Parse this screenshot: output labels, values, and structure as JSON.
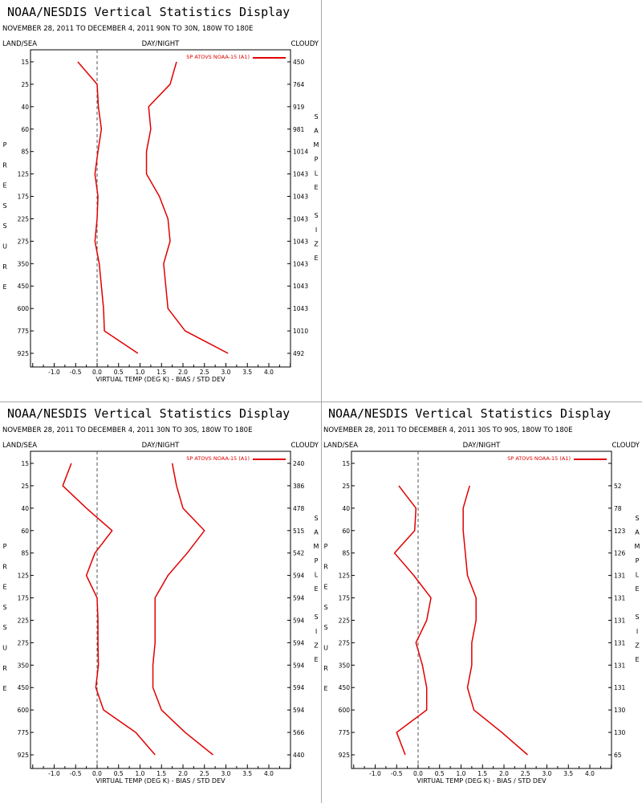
{
  "colors": {
    "series": "#e00000",
    "axis": "#000000",
    "zero_line": "#555555",
    "separator": "#a8a8a8"
  },
  "panels": [
    {
      "title": "NOAA/NESDIS Vertical Statistics Display",
      "subtitle": "NOVEMBER 28, 2011 TO DECEMBER 4, 2011 90N TO 30N, 180W TO 180E",
      "header_left": "LAND/SEA",
      "header_center": "DAY/NIGHT",
      "header_right": "CLOUDY",
      "left_vertical_label": "PRESSURE",
      "right_vertical_label": "SAMPLE SIZE",
      "legend": "SP ATOVS NOAA-15 (A1)",
      "xlabel": "VIRTUAL TEMP (DEG K) - BIAS / STD DEV",
      "sample_sizes": [
        "450",
        "764",
        "919",
        "981",
        "1014",
        "1043",
        "1043",
        "1043",
        "1043",
        "1043",
        "1043",
        "1043",
        "1010",
        "492"
      ]
    },
    {
      "title": "NOAA/NESDIS Vertical Statistics Display",
      "subtitle": "NOVEMBER 28, 2011 TO DECEMBER 4, 2011 30N TO 30S, 180W TO 180E",
      "header_left": "LAND/SEA",
      "header_center": "DAY/NIGHT",
      "header_right": "CLOUDY",
      "left_vertical_label": "PRESSURE",
      "right_vertical_label": "SAMPLE SIZE",
      "legend": "SP ATOVS NOAA-15 (A1)",
      "xlabel": "VIRTUAL TEMP (DEG K) - BIAS / STD DEV",
      "sample_sizes": [
        "240",
        "386",
        "478",
        "515",
        "542",
        "594",
        "594",
        "594",
        "594",
        "594",
        "594",
        "594",
        "566",
        "440"
      ]
    },
    {
      "title": "NOAA/NESDIS Vertical Statistics Display",
      "subtitle": "NOVEMBER 28, 2011 TO DECEMBER 4, 2011 30S TO 90S, 180W TO 180E",
      "header_left": "LAND/SEA",
      "header_center": "DAY/NIGHT",
      "header_right": "CLOUDY",
      "left_vertical_label": "PRESSURE",
      "right_vertical_label": "SAMPLE SIZE",
      "legend": "SP ATOVS NOAA-15 (A1)",
      "xlabel": "VIRTUAL TEMP (DEG K) - BIAS / STD DEV",
      "sample_sizes": [
        "",
        "52",
        "78",
        "123",
        "126",
        "131",
        "131",
        "131",
        "131",
        "131",
        "131",
        "130",
        "130",
        "65"
      ]
    }
  ],
  "chart_data": [
    {
      "type": "line",
      "title": "NOAA/NESDIS Vertical Statistics Display",
      "xlabel": "VIRTUAL TEMP (DEG K) - BIAS / STD DEV",
      "ylabel": "PRESSURE",
      "xlim": [
        -1.5,
        4.5
      ],
      "x_ticks": [
        "-1.0",
        "-0.5",
        "0.0",
        "0.5",
        "1.0",
        "1.5",
        "2.0",
        "2.5",
        "3.0",
        "3.5",
        "4.0"
      ],
      "y_ticks": [
        "15",
        "25",
        "40",
        "60",
        "85",
        "125",
        "175",
        "225",
        "275",
        "350",
        "450",
        "600",
        "775",
        "925"
      ],
      "series": [
        {
          "name": "SP ATOVS NOAA-15 (A1)",
          "role": "bias",
          "pressure": [
            15,
            25,
            40,
            60,
            85,
            125,
            175,
            225,
            275,
            350,
            450,
            600,
            775,
            925
          ],
          "values": [
            -0.45,
            0.0,
            0.03,
            0.1,
            0.02,
            -0.05,
            0.02,
            0.0,
            -0.05,
            0.05,
            0.1,
            0.15,
            0.17,
            0.95
          ]
        },
        {
          "pressure": [
            15,
            25,
            40,
            60,
            85,
            125,
            175,
            225,
            275,
            350,
            450,
            600,
            775,
            925
          ],
          "role": "std_dev",
          "values": [
            1.85,
            1.7,
            1.2,
            1.25,
            1.15,
            1.15,
            1.45,
            1.65,
            1.7,
            1.55,
            1.6,
            1.65,
            2.05,
            3.05
          ]
        }
      ]
    },
    {
      "type": "line",
      "title": "NOAA/NESDIS Vertical Statistics Display",
      "xlabel": "VIRTUAL TEMP (DEG K) - BIAS / STD DEV",
      "ylabel": "PRESSURE",
      "xlim": [
        -1.5,
        4.5
      ],
      "x_ticks": [
        "-1.0",
        "-0.5",
        "0.0",
        "0.5",
        "1.0",
        "1.5",
        "2.0",
        "2.5",
        "3.0",
        "3.5",
        "4.0"
      ],
      "y_ticks": [
        "15",
        "25",
        "40",
        "60",
        "85",
        "125",
        "175",
        "225",
        "275",
        "350",
        "450",
        "600",
        "775",
        "925"
      ],
      "series": [
        {
          "name": "SP ATOVS NOAA-15 (A1)",
          "role": "bias",
          "pressure": [
            15,
            25,
            40,
            60,
            85,
            125,
            175,
            225,
            275,
            350,
            450,
            600,
            775,
            925
          ],
          "values": [
            -0.6,
            -0.8,
            -0.25,
            0.35,
            -0.05,
            -0.25,
            0.0,
            0.02,
            0.02,
            0.03,
            -0.03,
            0.15,
            0.9,
            1.35
          ]
        },
        {
          "pressure": [
            15,
            25,
            40,
            60,
            85,
            125,
            175,
            225,
            275,
            350,
            450,
            600,
            775,
            925
          ],
          "role": "std_dev",
          "values": [
            1.75,
            1.85,
            2.0,
            2.5,
            2.1,
            1.65,
            1.35,
            1.35,
            1.35,
            1.3,
            1.3,
            1.5,
            2.05,
            2.7
          ]
        }
      ]
    },
    {
      "type": "line",
      "title": "NOAA/NESDIS Vertical Statistics Display",
      "xlabel": "VIRTUAL TEMP (DEG K) - BIAS / STD DEV",
      "ylabel": "PRESSURE",
      "xlim": [
        -1.5,
        4.5
      ],
      "x_ticks": [
        "-1.0",
        "-0.5",
        "0.0",
        "0.5",
        "1.0",
        "1.5",
        "2.0",
        "2.5",
        "3.0",
        "3.5",
        "4.0"
      ],
      "y_ticks": [
        "15",
        "25",
        "40",
        "60",
        "85",
        "125",
        "175",
        "225",
        "275",
        "350",
        "450",
        "600",
        "775",
        "925"
      ],
      "series": [
        {
          "name": "SP ATOVS NOAA-15 (A1)",
          "role": "bias",
          "pressure": [
            25,
            40,
            60,
            85,
            125,
            175,
            225,
            275,
            350,
            450,
            600,
            775,
            925
          ],
          "values": [
            -0.45,
            -0.05,
            -0.08,
            -0.55,
            -0.1,
            0.3,
            0.2,
            -0.05,
            0.1,
            0.2,
            0.2,
            -0.5,
            -0.3
          ]
        },
        {
          "pressure": [
            25,
            40,
            60,
            85,
            125,
            175,
            225,
            275,
            350,
            450,
            600,
            775,
            925
          ],
          "role": "std_dev",
          "values": [
            1.2,
            1.05,
            1.05,
            1.1,
            1.15,
            1.35,
            1.35,
            1.25,
            1.25,
            1.15,
            1.3,
            1.95,
            2.55
          ]
        }
      ]
    }
  ]
}
